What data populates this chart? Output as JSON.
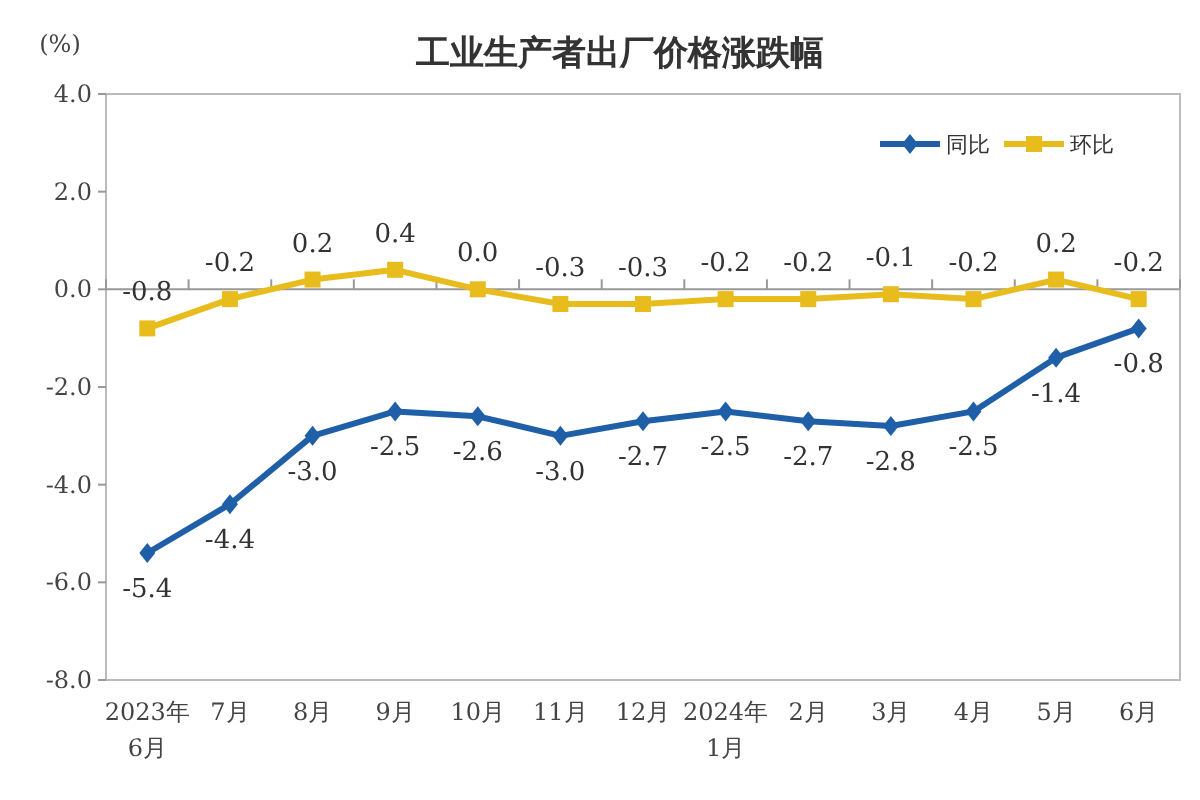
{
  "chart_data": {
    "type": "line",
    "title": "工业生产者出厂价格涨跌幅",
    "ylabel": "(%)",
    "categories": [
      "2023年\n6月",
      "7月",
      "8月",
      "9月",
      "10月",
      "11月",
      "12月",
      "2024年\n1月",
      "2月",
      "3月",
      "4月",
      "5月",
      "6月"
    ],
    "ylim": [
      -8,
      4
    ],
    "yticks": [
      {
        "value": -8,
        "label": "-8.0"
      },
      {
        "value": -6,
        "label": "-6.0"
      },
      {
        "value": -4,
        "label": "-4.0"
      },
      {
        "value": -2,
        "label": "-2.0"
      },
      {
        "value": 0,
        "label": "0.0"
      },
      {
        "value": 2,
        "label": "2.0"
      },
      {
        "value": 4,
        "label": "4.0"
      }
    ],
    "grid": false,
    "legend": "top right",
    "ref_lines": [
      {
        "axis": "y",
        "value": 0,
        "label": null
      }
    ],
    "series": [
      {
        "name": "同比",
        "color": "#1f5fa8",
        "marker": "diamond",
        "values": [
          -5.4,
          -4.4,
          -3.0,
          -2.5,
          -2.6,
          -3.0,
          -2.7,
          -2.5,
          -2.7,
          -2.8,
          -2.5,
          -1.4,
          -0.8
        ],
        "value_labels": [
          "-5.4",
          "-4.4",
          "-3.0",
          "-2.5",
          "-2.6",
          "-3.0",
          "-2.7",
          "-2.5",
          "-2.7",
          "-2.8",
          "-2.5",
          "-1.4",
          "-0.8"
        ]
      },
      {
        "name": "环比",
        "color": "#e8bc1c",
        "marker": "square",
        "values": [
          -0.8,
          -0.2,
          0.2,
          0.4,
          0.0,
          -0.3,
          -0.3,
          -0.2,
          -0.2,
          -0.1,
          -0.2,
          0.2,
          -0.2
        ],
        "value_labels": [
          "-0.8",
          "-0.2",
          "0.2",
          "0.4",
          "0.0",
          "-0.3",
          "-0.3",
          "-0.2",
          "-0.2",
          "-0.1",
          "-0.2",
          "0.2",
          "-0.2"
        ]
      }
    ]
  }
}
